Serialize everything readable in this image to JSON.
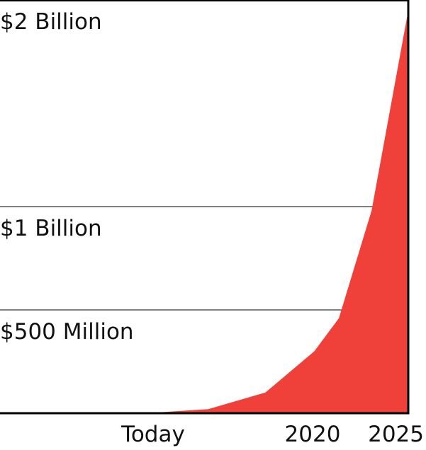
{
  "colors": {
    "area": "#ef413a",
    "axis": "#000000",
    "grid": "#000000",
    "background": "#ffffff"
  },
  "chart_data": {
    "type": "area",
    "title": "",
    "xlabel": "",
    "ylabel": "",
    "grid": true,
    "y_tick_labels": [
      {
        "label": "$500 Million",
        "value": 0.5
      },
      {
        "label": "$1 Billion",
        "value": 1.0
      },
      {
        "label": "$2 Billion",
        "value": 2.0
      }
    ],
    "x_tick_labels": [
      "Today",
      "2020",
      "2025"
    ],
    "series": [
      {
        "points": [
          {
            "t": 0.36,
            "value": 0.0
          },
          {
            "t": 0.51,
            "value": 0.02
          },
          {
            "t": 0.65,
            "value": 0.1
          },
          {
            "t": 0.77,
            "value": 0.3
          },
          {
            "t": 0.83,
            "value": 0.46
          },
          {
            "t": 0.91,
            "value": 0.98
          },
          {
            "t": 1.0,
            "value": 1.95
          }
        ]
      }
    ]
  }
}
